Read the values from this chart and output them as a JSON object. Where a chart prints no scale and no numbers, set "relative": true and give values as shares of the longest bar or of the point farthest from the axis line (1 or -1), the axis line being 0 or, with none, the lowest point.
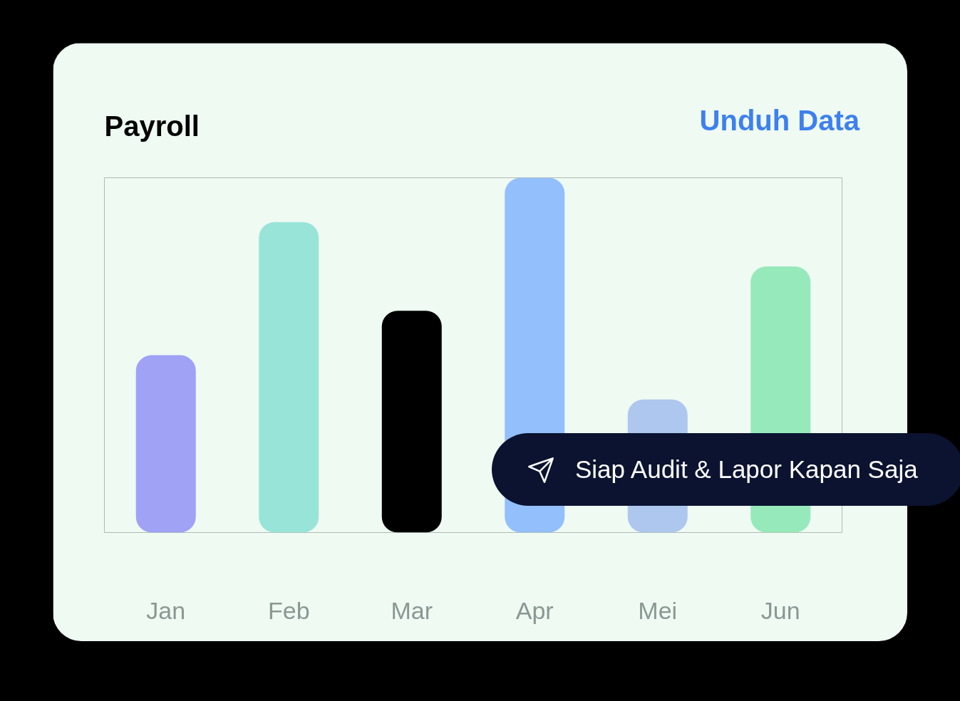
{
  "chart_data": {
    "type": "bar",
    "title": "Payroll",
    "categories": [
      "Jan",
      "Feb",
      "Mar",
      "Apr",
      "Mei",
      "Jun"
    ],
    "values": [
      0.5,
      0.875,
      0.625,
      1,
      0.375,
      0.75
    ],
    "colors": [
      "#a0a2f6",
      "#98e4d8",
      "#000000",
      "#93bffc",
      "#adc7ee",
      "#96e9bb"
    ],
    "relative": true,
    "annotations": [
      "Unduh Data",
      "Siap Audit & Lapor Kapan Saja"
    ]
  }
}
